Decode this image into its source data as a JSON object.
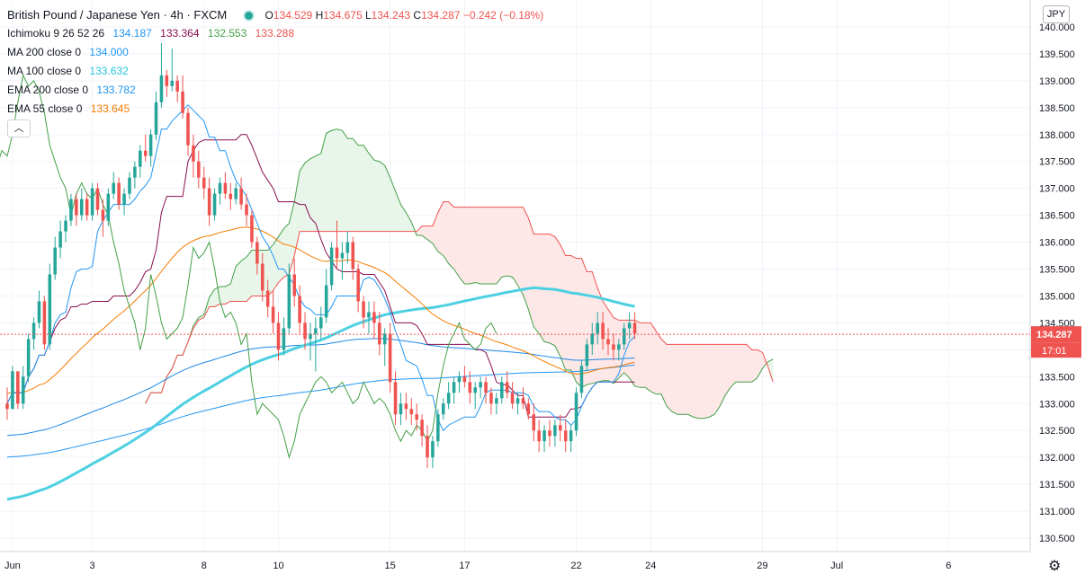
{
  "title": "British Pound / Japanese Yen · 4h · FXCM",
  "ohlc": {
    "o_label": "O",
    "o": "134.529",
    "h_label": "H",
    "h": "134.675",
    "l_label": "L",
    "l": "134.243",
    "c_label": "C",
    "c": "134.287",
    "change": "−0.242 (−0.18%)"
  },
  "indicators": [
    {
      "label": "Ichimoku 9 26 52 26",
      "values": [
        "134.187",
        "133.364",
        "132.553",
        "133.288"
      ],
      "colors": [
        "#2196f3",
        "#880e4f",
        "#43a047",
        "#ef5350"
      ]
    },
    {
      "label": "MA 200 close 0",
      "values": [
        "134.000"
      ],
      "colors": [
        "#2196f3"
      ]
    },
    {
      "label": "MA 100 close 0",
      "values": [
        "133.632"
      ],
      "colors": [
        "#4dd0e1"
      ]
    },
    {
      "label": "EMA 200 close 0",
      "values": [
        "133.782"
      ],
      "colors": [
        "#2196f3"
      ]
    },
    {
      "label": "EMA 55 close 0",
      "values": [
        "133.645"
      ],
      "colors": [
        "#f57c00"
      ]
    }
  ],
  "collapse_icon": "chevron-up-icon",
  "currency": "JPY",
  "settings_icon": "gear-icon",
  "price_tag": "134.287",
  "countdown": "17:01",
  "colors": {
    "up": "#26a69a",
    "down": "#ef5350",
    "tenkan": "#2196f3",
    "kijun": "#880e4f",
    "lagging": "#43a047",
    "span_a": "#43a047",
    "span_b": "#ef5350",
    "cloud_bull": "#e8f5e9",
    "cloud_bear": "#fde7e7",
    "ma200": "#2196f3",
    "ma100": "#4dd0e1",
    "ema200": "#1e88e5",
    "ema55": "#f57c00"
  },
  "chart_data": {
    "type": "candlestick",
    "symbol": "British Pound / Japanese Yen",
    "timeframe": "4h",
    "source": "FXCM",
    "y_ticks": [
      "130.500",
      "131.000",
      "131.500",
      "132.000",
      "132.500",
      "133.000",
      "133.500",
      "134.000",
      "134.500",
      "135.000",
      "135.500",
      "136.000",
      "136.500",
      "137.000",
      "137.500",
      "138.000",
      "138.500",
      "139.000",
      "139.500",
      "140.000"
    ],
    "ylim": [
      130.25,
      140.5
    ],
    "x_ticks": [
      {
        "label": "Jun",
        "i": 1
      },
      {
        "label": "3",
        "i": 16
      },
      {
        "label": "8",
        "i": 37
      },
      {
        "label": "10",
        "i": 51
      },
      {
        "label": "15",
        "i": 72
      },
      {
        "label": "17",
        "i": 86
      },
      {
        "label": "22",
        "i": 107
      },
      {
        "label": "24",
        "i": 121
      },
      {
        "label": "29",
        "i": 142
      },
      {
        "label": "Jul",
        "i": 156
      },
      {
        "label": "6",
        "i": 177
      }
    ],
    "x_count": 192,
    "candles": [
      [
        133.0,
        133.3,
        132.7,
        132.9
      ],
      [
        132.9,
        133.7,
        132.9,
        133.6
      ],
      [
        133.6,
        133.6,
        132.9,
        133.0
      ],
      [
        133.0,
        133.7,
        132.9,
        133.5
      ],
      [
        133.5,
        134.3,
        133.4,
        134.2
      ],
      [
        134.2,
        134.6,
        134.0,
        134.5
      ],
      [
        134.5,
        135.1,
        134.4,
        134.9
      ],
      [
        134.9,
        135.0,
        134.0,
        134.1
      ],
      [
        134.1,
        135.6,
        134.0,
        135.4
      ],
      [
        135.4,
        136.1,
        135.3,
        135.9
      ],
      [
        135.9,
        136.4,
        135.7,
        136.2
      ],
      [
        136.2,
        136.5,
        136.0,
        136.4
      ],
      [
        136.4,
        136.9,
        136.3,
        136.8
      ],
      [
        136.8,
        136.9,
        136.3,
        136.5
      ],
      [
        136.5,
        137.0,
        136.4,
        136.8
      ],
      [
        136.8,
        136.9,
        136.4,
        136.5
      ],
      [
        136.5,
        137.1,
        136.4,
        137.0
      ],
      [
        137.0,
        137.1,
        136.5,
        136.6
      ],
      [
        136.6,
        136.8,
        136.1,
        136.4
      ],
      [
        136.4,
        137.0,
        136.3,
        136.9
      ],
      [
        136.9,
        137.3,
        136.8,
        137.1
      ],
      [
        137.1,
        137.2,
        136.6,
        136.7
      ],
      [
        136.7,
        137.0,
        136.5,
        136.9
      ],
      [
        136.9,
        137.3,
        136.8,
        137.2
      ],
      [
        137.2,
        137.5,
        137.0,
        137.4
      ],
      [
        137.4,
        137.8,
        137.2,
        137.7
      ],
      [
        137.7,
        138.0,
        137.5,
        137.6
      ],
      [
        137.6,
        138.1,
        137.4,
        138.0
      ],
      [
        138.0,
        138.8,
        137.9,
        138.6
      ],
      [
        138.6,
        139.7,
        138.5,
        139.1
      ],
      [
        139.1,
        139.2,
        138.7,
        138.9
      ],
      [
        138.9,
        139.6,
        138.8,
        139.0
      ],
      [
        139.0,
        139.1,
        138.6,
        138.8
      ],
      [
        138.8,
        139.1,
        138.3,
        138.4
      ],
      [
        138.4,
        138.5,
        137.6,
        137.8
      ],
      [
        137.8,
        138.0,
        137.2,
        137.5
      ],
      [
        137.5,
        137.7,
        137.0,
        137.2
      ],
      [
        137.2,
        137.4,
        136.8,
        137.0
      ],
      [
        137.0,
        137.2,
        136.3,
        136.5
      ],
      [
        136.5,
        137.0,
        136.4,
        136.9
      ],
      [
        136.9,
        137.2,
        136.7,
        137.1
      ],
      [
        137.1,
        137.3,
        136.8,
        136.9
      ],
      [
        136.9,
        137.1,
        136.6,
        136.8
      ],
      [
        136.8,
        137.1,
        136.7,
        137.0
      ],
      [
        137.0,
        137.2,
        136.6,
        136.7
      ],
      [
        136.7,
        136.9,
        136.3,
        136.5
      ],
      [
        136.5,
        136.6,
        135.9,
        136.0
      ],
      [
        136.0,
        136.1,
        135.4,
        135.6
      ],
      [
        135.6,
        135.8,
        134.9,
        135.1
      ],
      [
        135.1,
        135.3,
        134.6,
        134.8
      ],
      [
        134.8,
        135.1,
        134.3,
        134.5
      ],
      [
        134.5,
        134.7,
        133.8,
        134.0
      ],
      [
        134.0,
        134.6,
        133.9,
        134.4
      ],
      [
        134.4,
        135.6,
        134.3,
        135.4
      ],
      [
        135.4,
        135.7,
        134.8,
        135.0
      ],
      [
        135.0,
        135.2,
        134.3,
        134.5
      ],
      [
        134.5,
        134.7,
        134.0,
        134.2
      ],
      [
        134.2,
        134.5,
        133.8,
        134.3
      ],
      [
        134.3,
        134.6,
        133.6,
        134.4
      ],
      [
        134.4,
        134.8,
        134.2,
        134.6
      ],
      [
        134.6,
        135.5,
        134.5,
        135.2
      ],
      [
        135.2,
        136.0,
        135.1,
        135.9
      ],
      [
        135.9,
        136.4,
        135.5,
        135.7
      ],
      [
        135.7,
        136.0,
        135.3,
        135.8
      ],
      [
        135.8,
        136.2,
        135.6,
        136.0
      ],
      [
        136.0,
        136.1,
        135.3,
        135.5
      ],
      [
        135.5,
        135.6,
        134.7,
        134.9
      ],
      [
        134.9,
        135.0,
        134.4,
        134.6
      ],
      [
        134.6,
        134.9,
        134.3,
        134.7
      ],
      [
        134.7,
        134.9,
        134.2,
        134.5
      ],
      [
        134.5,
        134.7,
        133.9,
        134.1
      ],
      [
        134.1,
        134.4,
        133.7,
        134.3
      ],
      [
        134.3,
        134.5,
        133.2,
        133.4
      ],
      [
        133.4,
        133.6,
        132.6,
        132.8
      ],
      [
        132.8,
        133.2,
        132.6,
        133.0
      ],
      [
        133.0,
        133.2,
        132.7,
        132.9
      ],
      [
        132.9,
        133.1,
        132.6,
        132.8
      ],
      [
        132.8,
        133.0,
        132.5,
        132.7
      ],
      [
        132.7,
        132.8,
        132.2,
        132.4
      ],
      [
        132.4,
        132.6,
        131.8,
        132.0
      ],
      [
        132.0,
        132.4,
        131.8,
        132.3
      ],
      [
        132.3,
        132.9,
        132.2,
        132.8
      ],
      [
        132.8,
        133.1,
        132.7,
        133.0
      ],
      [
        133.0,
        133.4,
        132.9,
        133.2
      ],
      [
        133.2,
        133.5,
        133.0,
        133.4
      ],
      [
        133.4,
        133.6,
        133.2,
        133.5
      ],
      [
        133.5,
        133.7,
        133.3,
        133.4
      ],
      [
        133.4,
        133.6,
        133.0,
        133.2
      ],
      [
        133.2,
        133.4,
        132.9,
        133.3
      ],
      [
        133.3,
        133.5,
        133.1,
        133.4
      ],
      [
        133.4,
        133.5,
        133.0,
        133.2
      ],
      [
        133.2,
        133.3,
        132.8,
        133.0
      ],
      [
        133.0,
        133.2,
        132.8,
        133.1
      ],
      [
        133.1,
        133.5,
        133.0,
        133.4
      ],
      [
        133.4,
        133.6,
        133.1,
        133.2
      ],
      [
        133.2,
        133.4,
        132.9,
        133.0
      ],
      [
        133.0,
        133.2,
        132.8,
        133.1
      ],
      [
        133.1,
        133.3,
        132.9,
        133.0
      ],
      [
        133.0,
        133.1,
        132.7,
        132.8
      ],
      [
        132.8,
        133.0,
        132.3,
        132.5
      ],
      [
        132.5,
        132.7,
        132.1,
        132.3
      ],
      [
        132.3,
        132.6,
        132.1,
        132.5
      ],
      [
        132.5,
        132.7,
        132.2,
        132.4
      ],
      [
        132.4,
        132.7,
        132.2,
        132.6
      ],
      [
        132.6,
        132.8,
        132.3,
        132.5
      ],
      [
        132.5,
        132.7,
        132.1,
        132.3
      ],
      [
        132.3,
        132.6,
        132.1,
        132.5
      ],
      [
        132.5,
        133.3,
        132.4,
        133.2
      ],
      [
        133.2,
        133.8,
        133.1,
        133.7
      ],
      [
        133.7,
        134.2,
        133.6,
        134.1
      ],
      [
        134.1,
        134.5,
        133.9,
        134.3
      ],
      [
        134.3,
        134.7,
        134.1,
        134.5
      ],
      [
        134.5,
        134.7,
        134.0,
        134.2
      ],
      [
        134.2,
        134.4,
        133.9,
        134.1
      ],
      [
        134.1,
        134.3,
        133.8,
        134.0
      ],
      [
        134.0,
        134.2,
        133.8,
        134.1
      ],
      [
        134.1,
        134.5,
        134.0,
        134.4
      ],
      [
        134.4,
        134.7,
        134.2,
        134.5
      ],
      [
        134.5,
        134.7,
        134.2,
        134.3
      ]
    ],
    "series_order_note": "OHLC per 4h bar"
  }
}
